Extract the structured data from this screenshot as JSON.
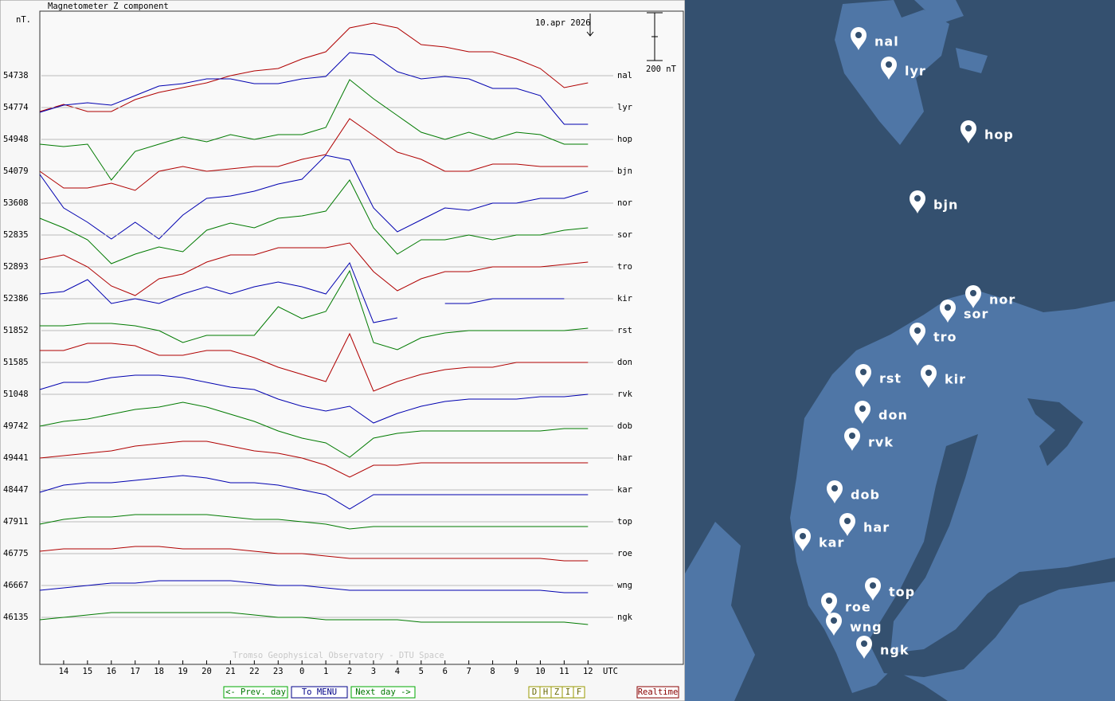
{
  "header": {
    "title": "Magnetometer Z component",
    "unit": "nT.",
    "date": "10.apr 2026",
    "credit": "Tromso Geophysical Observatory - DTU Space"
  },
  "chart_data": {
    "type": "line",
    "x": [
      13,
      14,
      15,
      16,
      17,
      18,
      19,
      20,
      21,
      22,
      23,
      24,
      25,
      26,
      27,
      28,
      29,
      30,
      31,
      32,
      33,
      34,
      35,
      36
    ],
    "xlim": [
      13,
      40
    ],
    "xticks": [
      14,
      15,
      16,
      17,
      18,
      19,
      20,
      21,
      22,
      23,
      {
        "value": 24,
        "label": "0"
      },
      {
        "value": 25,
        "label": "1"
      },
      {
        "value": 26,
        "label": "2"
      },
      {
        "value": 27,
        "label": "3"
      },
      {
        "value": 28,
        "label": "4"
      },
      {
        "value": 29,
        "label": "5"
      },
      {
        "value": 30,
        "label": "6"
      },
      {
        "value": 31,
        "label": "7"
      },
      {
        "value": 32,
        "label": "8"
      },
      {
        "value": 33,
        "label": "9"
      },
      {
        "value": 34,
        "label": "10"
      },
      {
        "value": 35,
        "label": "11"
      },
      {
        "value": 36,
        "label": "12"
      }
    ],
    "x_label": "UTC",
    "scale_bar": {
      "value": 200,
      "label": "200 nT"
    },
    "grid": true,
    "series": [
      {
        "name": "nal",
        "color": "#b00000",
        "baseline": 54738,
        "values": [
          -150,
          -120,
          -150,
          -150,
          -100,
          -70,
          -50,
          -30,
          0,
          20,
          30,
          70,
          100,
          200,
          220,
          200,
          130,
          120,
          100,
          100,
          70,
          30,
          -50,
          -30
        ]
      },
      {
        "name": "lyr",
        "color": "#0000b0",
        "baseline": 54774,
        "values": [
          -20,
          10,
          20,
          10,
          50,
          90,
          100,
          120,
          120,
          100,
          100,
          120,
          130,
          230,
          220,
          150,
          120,
          130,
          120,
          80,
          80,
          50,
          -70,
          -70
        ]
      },
      {
        "name": "hop",
        "color": "#007a00",
        "baseline": 54948,
        "values": [
          -20,
          -30,
          -20,
          -170,
          -50,
          -20,
          10,
          -10,
          20,
          0,
          20,
          20,
          50,
          250,
          170,
          100,
          30,
          0,
          30,
          0,
          30,
          20,
          -20,
          -20
        ]
      },
      {
        "name": "bjn",
        "color": "#b00000",
        "baseline": 54079,
        "values": [
          0,
          -70,
          -70,
          -50,
          -80,
          0,
          20,
          0,
          10,
          20,
          20,
          50,
          70,
          220,
          150,
          80,
          50,
          0,
          0,
          30,
          30,
          20,
          20,
          20
        ]
      },
      {
        "name": "nor",
        "color": "#0000b0",
        "baseline": 53608,
        "values": [
          120,
          -20,
          -80,
          -150,
          -80,
          -150,
          -50,
          20,
          30,
          50,
          80,
          100,
          200,
          180,
          -20,
          -120,
          -70,
          -20,
          -30,
          0,
          0,
          20,
          20,
          50
        ]
      },
      {
        "name": "sor",
        "color": "#007a00",
        "baseline": 52835,
        "values": [
          70,
          30,
          -20,
          -120,
          -80,
          -50,
          -70,
          20,
          50,
          30,
          70,
          80,
          100,
          230,
          30,
          -80,
          -20,
          -20,
          0,
          -20,
          0,
          0,
          20,
          30
        ]
      },
      {
        "name": "tro",
        "color": "#b00000",
        "baseline": 52893,
        "values": [
          30,
          50,
          0,
          -80,
          -120,
          -50,
          -30,
          20,
          50,
          50,
          80,
          80,
          80,
          100,
          -20,
          -100,
          -50,
          -20,
          -20,
          0,
          0,
          0,
          10,
          20
        ]
      },
      {
        "name": "kir",
        "color": "#0000b0",
        "baseline": 52386,
        "values": [
          20,
          30,
          80,
          -20,
          0,
          -20,
          20,
          50,
          20,
          50,
          70,
          50,
          20,
          150,
          -100,
          -80,
          null,
          -20,
          -20,
          0,
          0,
          0,
          0,
          null
        ]
      },
      {
        "name": "rst",
        "color": "#007a00",
        "baseline": 51852,
        "values": [
          20,
          20,
          30,
          30,
          20,
          0,
          -50,
          -20,
          -20,
          -20,
          100,
          50,
          80,
          250,
          -50,
          -80,
          -30,
          -10,
          0,
          0,
          0,
          0,
          0,
          10
        ]
      },
      {
        "name": "don",
        "color": "#b00000",
        "baseline": 51585,
        "values": [
          50,
          50,
          80,
          80,
          70,
          30,
          30,
          50,
          50,
          20,
          -20,
          -50,
          -80,
          120,
          -120,
          -80,
          -50,
          -30,
          -20,
          -20,
          0,
          0,
          0,
          0
        ]
      },
      {
        "name": "rvk",
        "color": "#0000b0",
        "baseline": 51048,
        "values": [
          20,
          50,
          50,
          70,
          80,
          80,
          70,
          50,
          30,
          20,
          -20,
          -50,
          -70,
          -50,
          -120,
          -80,
          -50,
          -30,
          -20,
          -20,
          -20,
          -10,
          -10,
          0
        ]
      },
      {
        "name": "dob",
        "color": "#007a00",
        "baseline": 49742,
        "values": [
          0,
          20,
          30,
          50,
          70,
          80,
          100,
          80,
          50,
          20,
          -20,
          -50,
          -70,
          -130,
          -50,
          -30,
          -20,
          -20,
          -20,
          -20,
          -20,
          -20,
          -10,
          -10
        ]
      },
      {
        "name": "har",
        "color": "#b00000",
        "baseline": 49441,
        "values": [
          0,
          10,
          20,
          30,
          50,
          60,
          70,
          70,
          50,
          30,
          20,
          0,
          -30,
          -80,
          -30,
          -30,
          -20,
          -20,
          -20,
          -20,
          -20,
          -20,
          -20,
          -20
        ]
      },
      {
        "name": "kar",
        "color": "#0000b0",
        "baseline": 48447,
        "values": [
          -10,
          20,
          30,
          30,
          40,
          50,
          60,
          50,
          30,
          30,
          20,
          0,
          -20,
          -80,
          -20,
          -20,
          -20,
          -20,
          -20,
          -20,
          -20,
          -20,
          -20,
          -20
        ]
      },
      {
        "name": "top",
        "color": "#007a00",
        "baseline": 47911,
        "values": [
          -10,
          10,
          20,
          20,
          30,
          30,
          30,
          30,
          20,
          10,
          10,
          0,
          -10,
          -30,
          -20,
          -20,
          -20,
          -20,
          -20,
          -20,
          -20,
          -20,
          -20,
          -20
        ]
      },
      {
        "name": "roe",
        "color": "#b00000",
        "baseline": 46775,
        "values": [
          10,
          20,
          20,
          20,
          30,
          30,
          20,
          20,
          20,
          10,
          0,
          0,
          -10,
          -20,
          -20,
          -20,
          -20,
          -20,
          -20,
          -20,
          -20,
          -20,
          -30,
          -30
        ]
      },
      {
        "name": "wng",
        "color": "#0000b0",
        "baseline": 46667,
        "values": [
          -20,
          -10,
          0,
          10,
          10,
          20,
          20,
          20,
          20,
          10,
          0,
          0,
          -10,
          -20,
          -20,
          -20,
          -20,
          -20,
          -20,
          -20,
          -20,
          -20,
          -30,
          -30
        ]
      },
      {
        "name": "ngk",
        "color": "#007a00",
        "baseline": 46135,
        "values": [
          -10,
          0,
          10,
          20,
          20,
          20,
          20,
          20,
          20,
          10,
          0,
          0,
          -10,
          -10,
          -10,
          -10,
          -20,
          -20,
          -20,
          -20,
          -20,
          -20,
          -20,
          -30
        ]
      }
    ]
  },
  "nav": {
    "buttons": [
      "<- Prev. day",
      "To MENU",
      "Next day ->"
    ],
    "components": [
      "D",
      "H",
      "Z",
      "I",
      "F"
    ],
    "realtime": "Realtime"
  }
}
